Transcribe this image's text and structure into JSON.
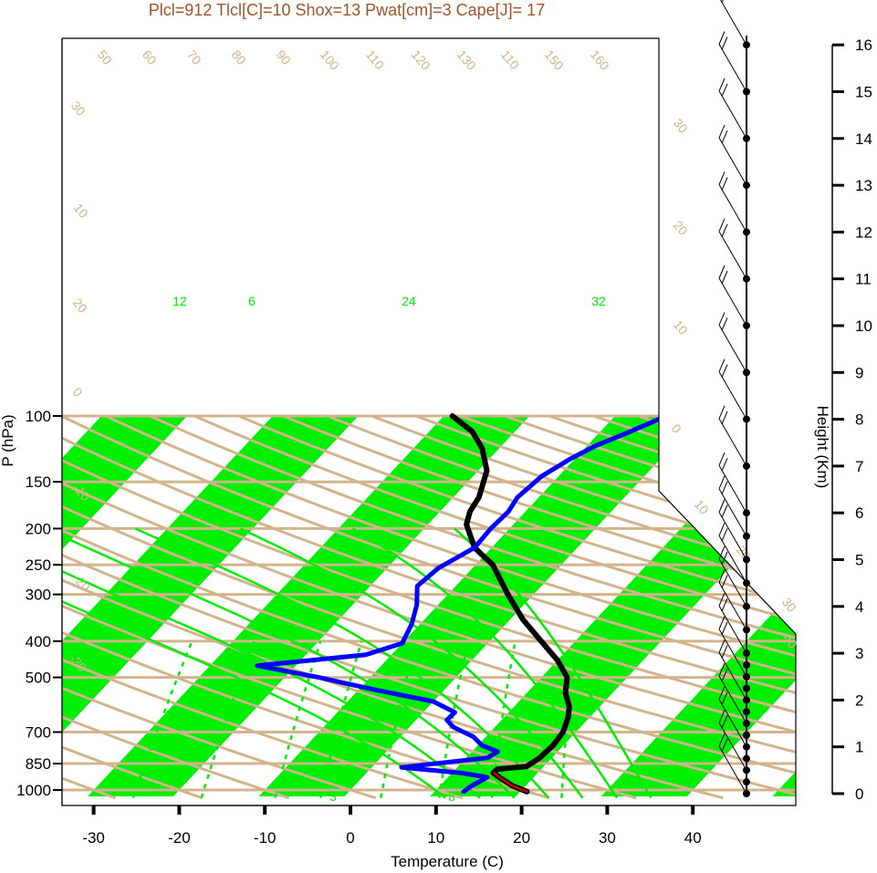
{
  "chart_data": {
    "type": "line",
    "subtype": "skew-t log-p sounding",
    "title": "Plcl=912 Tlcl[C]=10 Shox=13 Pwat[cm]=3 Cape[J]= 17",
    "xlabel": "Temperature (C)",
    "ylabel": "P (hPa)",
    "y2label": "Height (Km)",
    "x_ticks": [
      -30,
      -20,
      -10,
      0,
      10,
      20,
      30,
      40
    ],
    "x_tick_labels": [
      "-30",
      "-20",
      "-10",
      "0",
      "10",
      "20",
      "30",
      "40"
    ],
    "p_ticks": [
      100,
      150,
      200,
      250,
      300,
      400,
      500,
      700,
      850,
      1000
    ],
    "p_tick_labels": [
      "100",
      "150",
      "200",
      "250",
      "300",
      "400",
      "500",
      "700",
      "850",
      "1000"
    ],
    "height_ticks": [
      0,
      1,
      2,
      3,
      4,
      5,
      6,
      7,
      8,
      9,
      10,
      11,
      12,
      13,
      14,
      15,
      16
    ],
    "height_tick_labels": [
      "0",
      "1",
      "2",
      "3",
      "4",
      "5",
      "6",
      "7",
      "8",
      "9",
      "10",
      "11",
      "12",
      "13",
      "14",
      "15",
      "16"
    ],
    "xlim": [
      -33.5,
      54
    ],
    "plim": [
      1040,
      100
    ],
    "colors": {
      "temperature": "#000000",
      "dewpoint": "#0000ff",
      "parcel": "#cc0000",
      "isotherm_band": "#00ee00",
      "isobar": "#d2b48c",
      "adiabat": "#d2b48c",
      "mixing_ratio": "#00ee00",
      "header": "#a0522d"
    },
    "series": [
      {
        "name": "T",
        "points": [
          [
            20.8,
            1010
          ],
          [
            18.5,
            975
          ],
          [
            16,
            925
          ],
          [
            14.8,
            900
          ],
          [
            14.9,
            880
          ],
          [
            18,
            865
          ],
          [
            18.6,
            820
          ],
          [
            18.8,
            760
          ],
          [
            18.5,
            700
          ],
          [
            17.5,
            640
          ],
          [
            16.5,
            600
          ],
          [
            14.5,
            550
          ],
          [
            13,
            500
          ],
          [
            10,
            450
          ],
          [
            6,
            400
          ],
          [
            1.5,
            350
          ],
          [
            -3,
            300
          ],
          [
            -8,
            250
          ],
          [
            -12,
            225
          ],
          [
            -15.5,
            195
          ],
          [
            -16.5,
            180
          ],
          [
            -17,
            165
          ],
          [
            -19,
            140
          ],
          [
            -22,
            122
          ],
          [
            -25,
            110
          ],
          [
            -29,
            100
          ]
        ]
      },
      {
        "name": "Td",
        "points": [
          [
            13.4,
            1010
          ],
          [
            13.7,
            975
          ],
          [
            14.6,
            925
          ],
          [
            11,
            900
          ],
          [
            3.5,
            870
          ],
          [
            12.5,
            820
          ],
          [
            13,
            790
          ],
          [
            10.5,
            760
          ],
          [
            8.5,
            720
          ],
          [
            5.2,
            680
          ],
          [
            3.6,
            650
          ],
          [
            3.7,
            620
          ],
          [
            0,
            580
          ],
          [
            -8,
            540
          ],
          [
            -16,
            500
          ],
          [
            -24.5,
            465
          ],
          [
            -13,
            435
          ],
          [
            -10,
            405
          ],
          [
            -11,
            360
          ],
          [
            -12.5,
            320
          ],
          [
            -14.5,
            285
          ],
          [
            -14,
            255
          ],
          [
            -12,
            225
          ],
          [
            -12.2,
            200
          ],
          [
            -12,
            180
          ],
          [
            -12.5,
            165
          ],
          [
            -12,
            145
          ],
          [
            -10.5,
            130
          ],
          [
            -9,
            120
          ],
          [
            -7,
            112
          ],
          [
            -4,
            100
          ]
        ]
      },
      {
        "name": "parcel",
        "points": [
          [
            20.8,
            1010
          ],
          [
            18.5,
            975
          ],
          [
            16,
            925
          ],
          [
            15,
            902
          ]
        ]
      }
    ],
    "isotherm_labels": [
      "50",
      "60",
      "70",
      "80",
      "90",
      "100",
      "110",
      "120",
      "130",
      "110",
      "150",
      "160",
      "30",
      "20",
      "10",
      "0",
      "10",
      "20",
      "30",
      "40",
      "30",
      "10",
      "20",
      "0",
      "-10",
      "-20",
      "-30"
    ],
    "mixing_ratio_labels": [
      "12",
      "6",
      "24",
      "32",
      "3",
      "8"
    ],
    "wind_barb_heights_km": [
      0,
      0.5,
      1,
      1.5,
      2,
      2.5,
      3,
      3.5,
      4,
      4.5,
      5,
      5.5,
      6,
      7,
      8,
      9,
      10,
      11,
      12,
      13,
      14,
      15,
      16
    ],
    "wind_dot_heights_km": [
      0,
      0.25,
      0.5,
      0.75,
      1,
      1.25,
      1.5,
      1.75,
      2,
      2.25,
      2.5,
      2.75,
      3,
      3.5,
      4,
      4.5,
      5,
      5.5,
      6,
      7,
      8,
      9,
      10,
      11,
      12,
      13,
      14,
      15,
      16
    ]
  }
}
